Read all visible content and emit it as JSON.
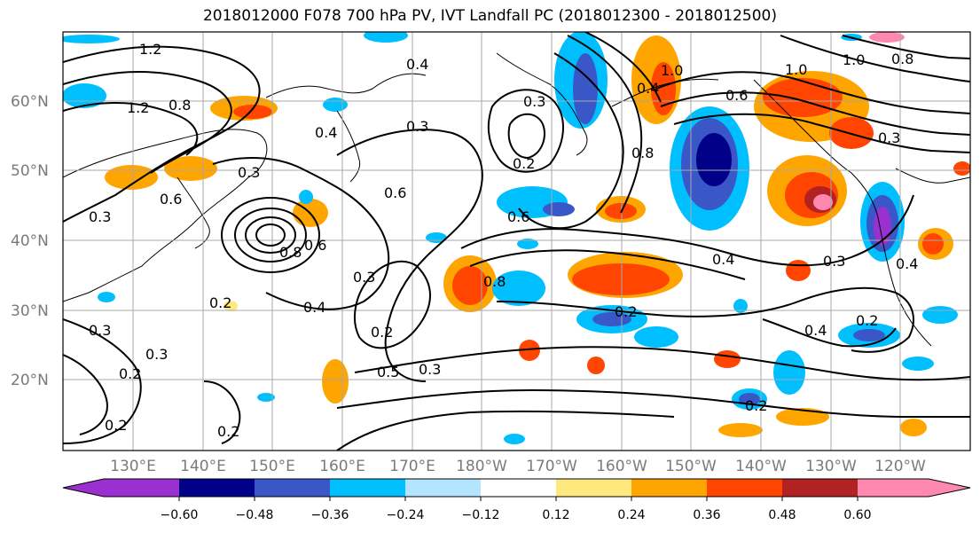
{
  "title": "2018012000 F078 700 hPa PV, IVT Landfall PC (2018012300 - 2018012500)",
  "lat_labels": [
    "60°N",
    "50°N",
    "40°N",
    "30°N",
    "20°N"
  ],
  "lon_labels": [
    "130°E",
    "140°E",
    "150°E",
    "160°E",
    "170°E",
    "180°W",
    "170°W",
    "160°W",
    "150°W",
    "140°W",
    "130°W",
    "120°W"
  ],
  "colorbar": {
    "colors": [
      "#9b30d0",
      "#000088",
      "#3a57c8",
      "#00bfff",
      "#b3e5ff",
      "#ffffff",
      "#ffe97f",
      "#ffa500",
      "#ff4500",
      "#b22222",
      "#ff88b0"
    ],
    "tick_labels": [
      "−0.60",
      "−0.48",
      "−0.36",
      "−0.24",
      "−0.12",
      "0.12",
      "0.24",
      "0.36",
      "0.48",
      "0.60"
    ]
  },
  "contour_labels": [
    "1.2",
    "1.2",
    "0.8",
    "0.4",
    "0.3",
    "0.3",
    "0.4",
    "0.3",
    "0.2",
    "0.6",
    "0.6",
    "0.3",
    "0.8",
    "0.6",
    "0.4",
    "0.3",
    "0.2",
    "0.3",
    "0.5",
    "0.3",
    "0.8",
    "0.6",
    "0.2",
    "0.4",
    "0.2",
    "0.4",
    "0.3",
    "0.2",
    "0.2",
    "0.3",
    "0.2",
    "1.0",
    "1.0",
    "0.3",
    "0.8",
    "0.4",
    "0.8",
    "0.6",
    "1.0",
    "0.4",
    "0.2",
    "0.2"
  ]
}
